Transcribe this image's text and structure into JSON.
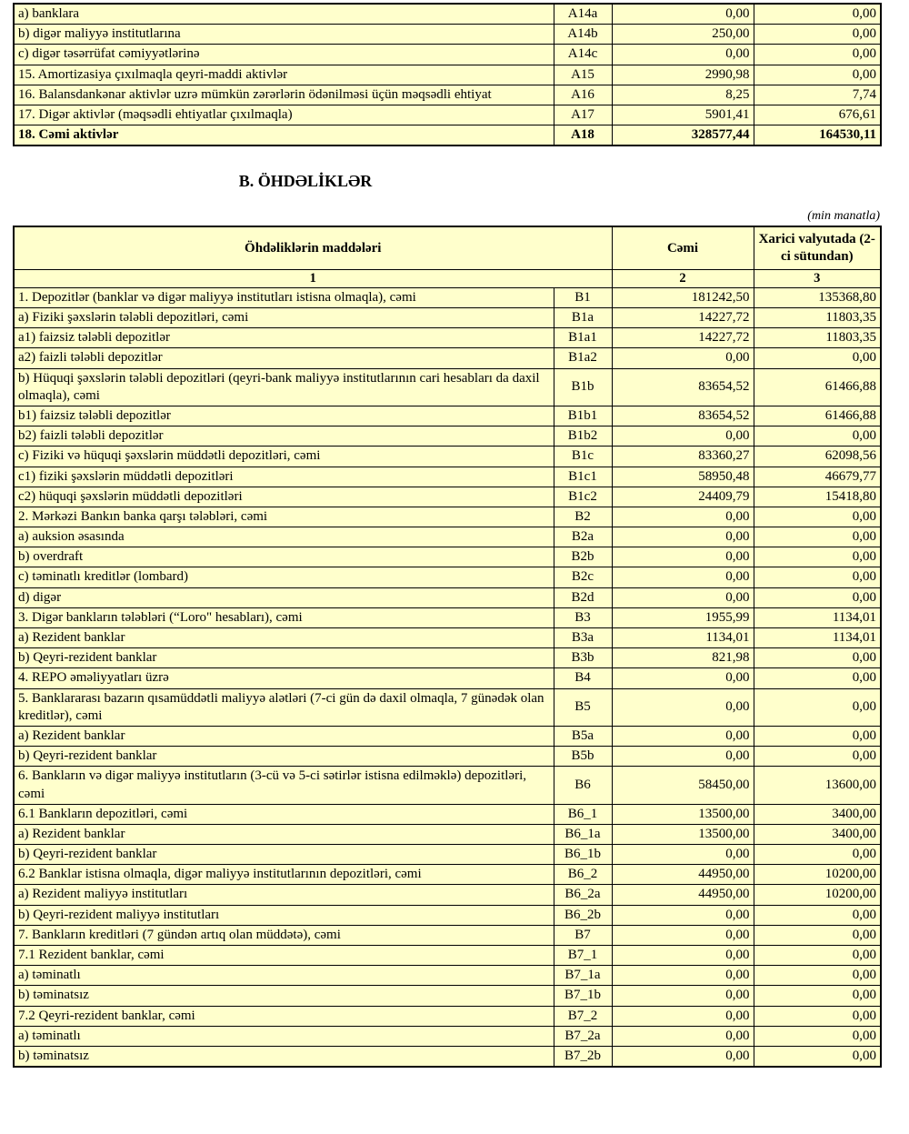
{
  "colors": {
    "cell_background": "#FFFFCC",
    "border": "#000000"
  },
  "page": {
    "section_b_title": "B. ÖHDƏLİKLƏR",
    "unit_note": "(min manatla)"
  },
  "table_a": {
    "rows": [
      {
        "label": "a) banklara",
        "code": "A14a",
        "total": "0,00",
        "foreign": "0,00",
        "indent": 1
      },
      {
        "label": "b) digər maliyyə institutlarına",
        "code": "A14b",
        "total": "250,00",
        "foreign": "0,00",
        "indent": 1
      },
      {
        "label": "c) digər təsərrüfat cəmiyyətlərinə",
        "code": "A14c",
        "total": "0,00",
        "foreign": "0,00",
        "indent": 1
      },
      {
        "label": "15. Amortizasiya çıxılmaqla qeyri-maddi aktivlər",
        "code": "A15",
        "total": "2990,98",
        "foreign": "0,00",
        "indent": 0
      },
      {
        "label": "16. Balansdankənar aktivlər uzrə mümkün zərərlərin ödənilməsi üçün məqsədli ehtiyat",
        "code": "A16",
        "total": "8,25",
        "foreign": "7,74",
        "indent": 0
      },
      {
        "label": "17. Digər aktivlər (məqsədli ehtiyatlar çıxılmaqla)",
        "code": "A17",
        "total": "5901,41",
        "foreign": "676,61",
        "indent": 0
      },
      {
        "label": "18. Cəmi aktivlər",
        "code": "A18",
        "total": "328577,44",
        "foreign": "164530,11",
        "indent": 0,
        "bold": true
      }
    ]
  },
  "table_b": {
    "header": {
      "items_label": "Öhdəliklərin maddələri",
      "total_label": "Cəmi",
      "foreign_label": "Xarici valyutada (2-ci sütundan)",
      "col_numbers": [
        "1",
        "2",
        "3"
      ]
    },
    "rows": [
      {
        "label": "1. Depozitlər (banklar və digər maliyyə institutları istisna olmaqla), cəmi",
        "code": "B1",
        "total": "181242,50",
        "foreign": "135368,80",
        "indent": 0
      },
      {
        "label": "a)  Fiziki şəxslərin tələbli depozitləri, cəmi",
        "code": "B1a",
        "total": "14227,72",
        "foreign": "11803,35",
        "indent": 1
      },
      {
        "label": "a1) faizsiz tələbli depozitlər",
        "code": "B1a1",
        "total": "14227,72",
        "foreign": "11803,35",
        "indent": 2
      },
      {
        "label": "a2) faizli tələbli depozitlər",
        "code": "B1a2",
        "total": "0,00",
        "foreign": "0,00",
        "indent": 2
      },
      {
        "label": "b) Hüquqi şəxslərin tələbli depozitləri (qeyri-bank maliyyə institutlarının cari hesabları da daxil olmaqla), cəmi",
        "code": "B1b",
        "total": "83654,52",
        "foreign": "61466,88",
        "indent": 1
      },
      {
        "label": "b1) faizsiz tələbli depozitlər",
        "code": "B1b1",
        "total": "83654,52",
        "foreign": "61466,88",
        "indent": 2
      },
      {
        "label": "b2) faizli tələbli depozitlər",
        "code": "B1b2",
        "total": "0,00",
        "foreign": "0,00",
        "indent": 2
      },
      {
        "label": "c) Fiziki və hüquqi şəxslərin müddətli depozitləri, cəmi",
        "code": "B1c",
        "total": "83360,27",
        "foreign": "62098,56",
        "indent": 1
      },
      {
        "label": "c1) fiziki şəxslərin müddətli depozitləri",
        "code": "B1c1",
        "total": "58950,48",
        "foreign": "46679,77",
        "indent": 2
      },
      {
        "label": "c2) hüquqi şəxslərin müddətli depozitləri",
        "code": "B1c2",
        "total": "24409,79",
        "foreign": "15418,80",
        "indent": 2
      },
      {
        "label": "2. Mərkəzi Bankın banka qarşı tələbləri, cəmi",
        "code": "B2",
        "total": "0,00",
        "foreign": "0,00",
        "indent": 0
      },
      {
        "label": "a) auksion əsasında",
        "code": "B2a",
        "total": "0,00",
        "foreign": "0,00",
        "indent": 1
      },
      {
        "label": "b) overdraft",
        "code": "B2b",
        "total": "0,00",
        "foreign": "0,00",
        "indent": 1
      },
      {
        "label": "c) təminatlı kreditlər (lombard)",
        "code": "B2c",
        "total": "0,00",
        "foreign": "0,00",
        "indent": 1
      },
      {
        "label": "d) digər",
        "code": "B2d",
        "total": "0,00",
        "foreign": "0,00",
        "indent": 1
      },
      {
        "label": "3. Digər bankların tələbləri (“Loro\" hesabları), cəmi",
        "code": "B3",
        "total": "1955,99",
        "foreign": "1134,01",
        "indent": 0
      },
      {
        "label": "a) Rezident banklar",
        "code": "B3a",
        "total": "1134,01",
        "foreign": "1134,01",
        "indent": 1
      },
      {
        "label": "b) Qeyri-rezident banklar",
        "code": "B3b",
        "total": "821,98",
        "foreign": "0,00",
        "indent": 1
      },
      {
        "label": "4. REPO əməliyyatları  üzrə",
        "code": "B4",
        "total": "0,00",
        "foreign": "0,00",
        "indent": 0
      },
      {
        "label": "5. Banklararası bazarın qısamüddətli maliyyə alətləri (7-ci gün də daxil olmaqla, 7 günədək olan kreditlər), cəmi",
        "code": "B5",
        "total": "0,00",
        "foreign": "0,00",
        "indent": 0
      },
      {
        "label": "a) Rezident banklar",
        "code": "B5a",
        "total": "0,00",
        "foreign": "0,00",
        "indent": 1
      },
      {
        "label": "b) Qeyri-rezident banklar",
        "code": "B5b",
        "total": "0,00",
        "foreign": "0,00",
        "indent": 1
      },
      {
        "label": "6. Bankların və digər maliyyə institutların (3-cü və 5-ci sətirlər istisna edilməklə) depozitləri, cəmi",
        "code": "B6",
        "total": "58450,00",
        "foreign": "13600,00",
        "indent": 0
      },
      {
        "label": "6.1  Bankların depozitləri, cəmi",
        "code": "B6_1",
        "total": "13500,00",
        "foreign": "3400,00",
        "indent": 0
      },
      {
        "label": "a) Rezident banklar",
        "code": "B6_1a",
        "total": "13500,00",
        "foreign": "3400,00",
        "indent": 1
      },
      {
        "label": "b) Qeyri-rezident banklar",
        "code": "B6_1b",
        "total": "0,00",
        "foreign": "0,00",
        "indent": 1
      },
      {
        "label": "6.2 Banklar istisna olmaqla, digər maliyyə institutlarının depozitləri, cəmi",
        "code": "B6_2",
        "total": "44950,00",
        "foreign": "10200,00",
        "indent": 0
      },
      {
        "label": "a) Rezident maliyyə institutları",
        "code": "B6_2a",
        "total": "44950,00",
        "foreign": "10200,00",
        "indent": 1
      },
      {
        "label": "b) Qeyri-rezident maliyyə institutları",
        "code": "B6_2b",
        "total": "0,00",
        "foreign": "0,00",
        "indent": 1
      },
      {
        "label": "7. Bankların kreditləri (7 gündən artıq olan müddətə), cəmi",
        "code": "B7",
        "total": "0,00",
        "foreign": "0,00",
        "indent": 0
      },
      {
        "label": "7.1 Rezident banklar, cəmi",
        "code": "B7_1",
        "total": "0,00",
        "foreign": "0,00",
        "indent": 0
      },
      {
        "label": "a) təminatlı",
        "code": "B7_1a",
        "total": "0,00",
        "foreign": "0,00",
        "indent": 1
      },
      {
        "label": "b) təminatsız",
        "code": "B7_1b",
        "total": "0,00",
        "foreign": "0,00",
        "indent": 1
      },
      {
        "label": "7.2 Qeyri-rezident banklar, cəmi",
        "code": "B7_2",
        "total": "0,00",
        "foreign": "0,00",
        "indent": 0
      },
      {
        "label": "a) təminatlı",
        "code": "B7_2a",
        "total": "0,00",
        "foreign": "0,00",
        "indent": 1
      },
      {
        "label": "b) təminatsız",
        "code": "B7_2b",
        "total": "0,00",
        "foreign": "0,00",
        "indent": 1
      }
    ]
  }
}
